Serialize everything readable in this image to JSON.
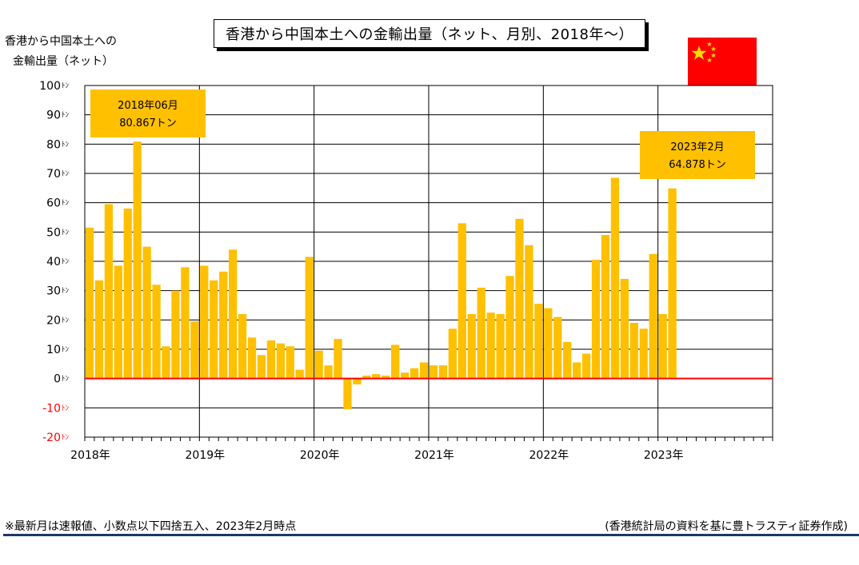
{
  "title": "香港から中国本土への金輸出量（ネット、月別、2018年～）",
  "ylabel_lines": [
    "香港から中国本土への",
    "金輸出量（ネット）"
  ],
  "footnote": "※最新月は速報値、小数点以下四捨五入、2023年2月時点",
  "source": "(香港統計局の資料を基に豊トラスティ証券作成)",
  "flag_icon": "china-flag-icon",
  "colors": {
    "bar": "#ffc000",
    "zero_line": "#ff0000",
    "negative_tick": "#ff0000",
    "grid": "#000000"
  },
  "chart_data": {
    "type": "bar",
    "ylim": [
      -20,
      100
    ],
    "y_ticks": [
      {
        "value": 100,
        "label": "100ﾄﾝ"
      },
      {
        "value": 90,
        "label": "90ﾄﾝ"
      },
      {
        "value": 80,
        "label": "80ﾄﾝ"
      },
      {
        "value": 70,
        "label": "70ﾄﾝ"
      },
      {
        "value": 60,
        "label": "60ﾄﾝ"
      },
      {
        "value": 50,
        "label": "50ﾄﾝ"
      },
      {
        "value": 40,
        "label": "40ﾄﾝ"
      },
      {
        "value": 30,
        "label": "30ﾄﾝ"
      },
      {
        "value": 20,
        "label": "20ﾄﾝ"
      },
      {
        "value": 10,
        "label": "10ﾄﾝ"
      },
      {
        "value": 0,
        "label": "0ﾄﾝ"
      },
      {
        "value": -10,
        "label": "-10ﾄﾝ"
      },
      {
        "value": -20,
        "label": "-20ﾄﾝ"
      }
    ],
    "x_year_labels": [
      "2018年",
      "2019年",
      "2020年",
      "2021年",
      "2022年",
      "2023年"
    ],
    "months_total": 72,
    "grid": true,
    "values": [
      51.5,
      33.5,
      59.5,
      38.5,
      58,
      80.867,
      45,
      32,
      11,
      30,
      38,
      19.5,
      38.5,
      33.5,
      36.5,
      44,
      22,
      14,
      8,
      13,
      12,
      11,
      3,
      41.5,
      9.5,
      4.5,
      13.5,
      -10.5,
      -2,
      1,
      1.5,
      1,
      11.5,
      2,
      3.5,
      5.5,
      4.5,
      4.5,
      17,
      53,
      22,
      31,
      22.5,
      22,
      35,
      54.5,
      45.5,
      25.5,
      24,
      21,
      12.5,
      5.5,
      8.5,
      40.5,
      49,
      68.5,
      34,
      19,
      17,
      42.5,
      22,
      64.878
    ],
    "annotations": [
      {
        "month_index": 5,
        "line1": "2018年06月",
        "line2": "80.867トン"
      },
      {
        "month_index": 61,
        "line1": "2023年2月",
        "line2": "64.878トン"
      }
    ]
  }
}
